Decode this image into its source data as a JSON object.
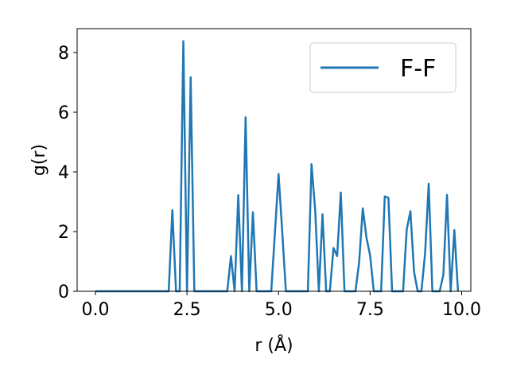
{
  "chart_data": {
    "type": "line",
    "xlabel": "r (Å)",
    "ylabel": "g(r)",
    "xlim": [
      -0.5,
      10.25
    ],
    "ylim": [
      0,
      8.8
    ],
    "xticks": [
      0.0,
      2.5,
      5.0,
      7.5,
      10.0
    ],
    "xtick_labels": [
      "0.0",
      "2.5",
      "5.0",
      "7.5",
      "10.0"
    ],
    "yticks": [
      0,
      2,
      4,
      6,
      8
    ],
    "ytick_labels": [
      "0",
      "2",
      "4",
      "6",
      "8"
    ],
    "grid": false,
    "legend_position": "top-right",
    "series": [
      {
        "name": "F-F",
        "color": "#1f77b4",
        "x": [
          0.0,
          2.0,
          2.1,
          2.2,
          2.3,
          2.4,
          2.5,
          2.6,
          2.7,
          2.8,
          3.6,
          3.7,
          3.8,
          3.9,
          4.0,
          4.1,
          4.2,
          4.3,
          4.4,
          4.8,
          4.9,
          5.0,
          5.1,
          5.2,
          5.8,
          5.9,
          6.0,
          6.1,
          6.2,
          6.3,
          6.4,
          6.5,
          6.6,
          6.7,
          6.8,
          7.1,
          7.2,
          7.3,
          7.4,
          7.5,
          7.6,
          7.8,
          7.9,
          8.0,
          8.1,
          8.4,
          8.5,
          8.6,
          8.7,
          8.8,
          8.9,
          9.0,
          9.1,
          9.2,
          9.4,
          9.5,
          9.6,
          9.7,
          9.8,
          9.9
        ],
        "y": [
          0,
          0,
          2.72,
          0,
          0,
          8.38,
          0,
          7.17,
          0,
          0,
          0,
          1.18,
          0,
          3.22,
          0,
          5.83,
          0,
          2.65,
          0,
          0,
          1.95,
          3.93,
          2.0,
          0,
          0,
          4.26,
          2.72,
          0,
          2.58,
          0,
          0,
          1.45,
          1.18,
          3.31,
          0,
          0,
          0.97,
          2.78,
          1.8,
          1.2,
          0,
          0,
          3.18,
          3.13,
          0,
          0,
          2.07,
          2.68,
          0.65,
          0,
          0,
          1.25,
          3.6,
          0,
          0,
          0.55,
          3.23,
          0,
          2.05,
          0
        ]
      }
    ]
  }
}
